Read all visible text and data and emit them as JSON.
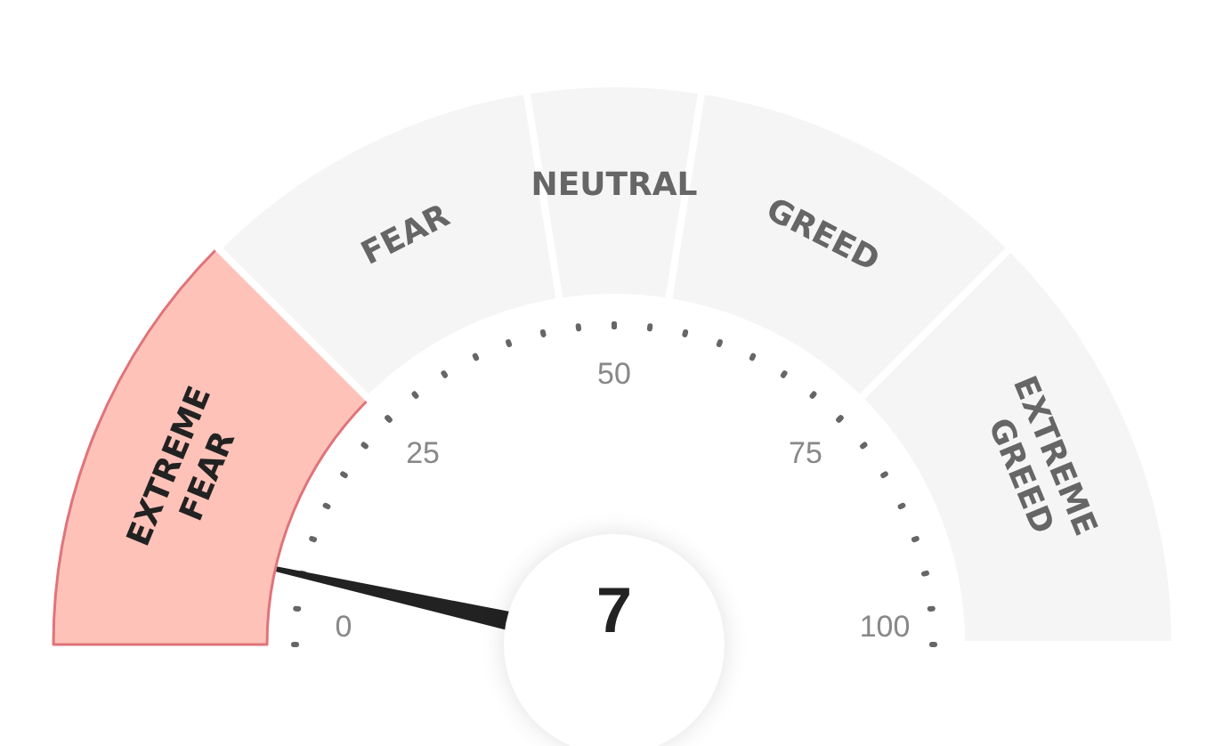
{
  "chart_data": {
    "type": "donut",
    "categories": [
      "EXTREME FEAR",
      "FEAR",
      "NEUTRAL",
      "GREED",
      "EXTREME GREED"
    ],
    "values": [
      25,
      20,
      10,
      20,
      25
    ],
    "colors": [
      "#ffc2b8",
      "#f5f5f5",
      "#f5f5f5",
      "#f5f5f5",
      "#f5f5f5"
    ],
    "needle": "EXTREME FEAR",
    "annotations": [
      "0",
      "25",
      "50",
      "75",
      "100",
      "7"
    ],
    "legend": false
  }
}
